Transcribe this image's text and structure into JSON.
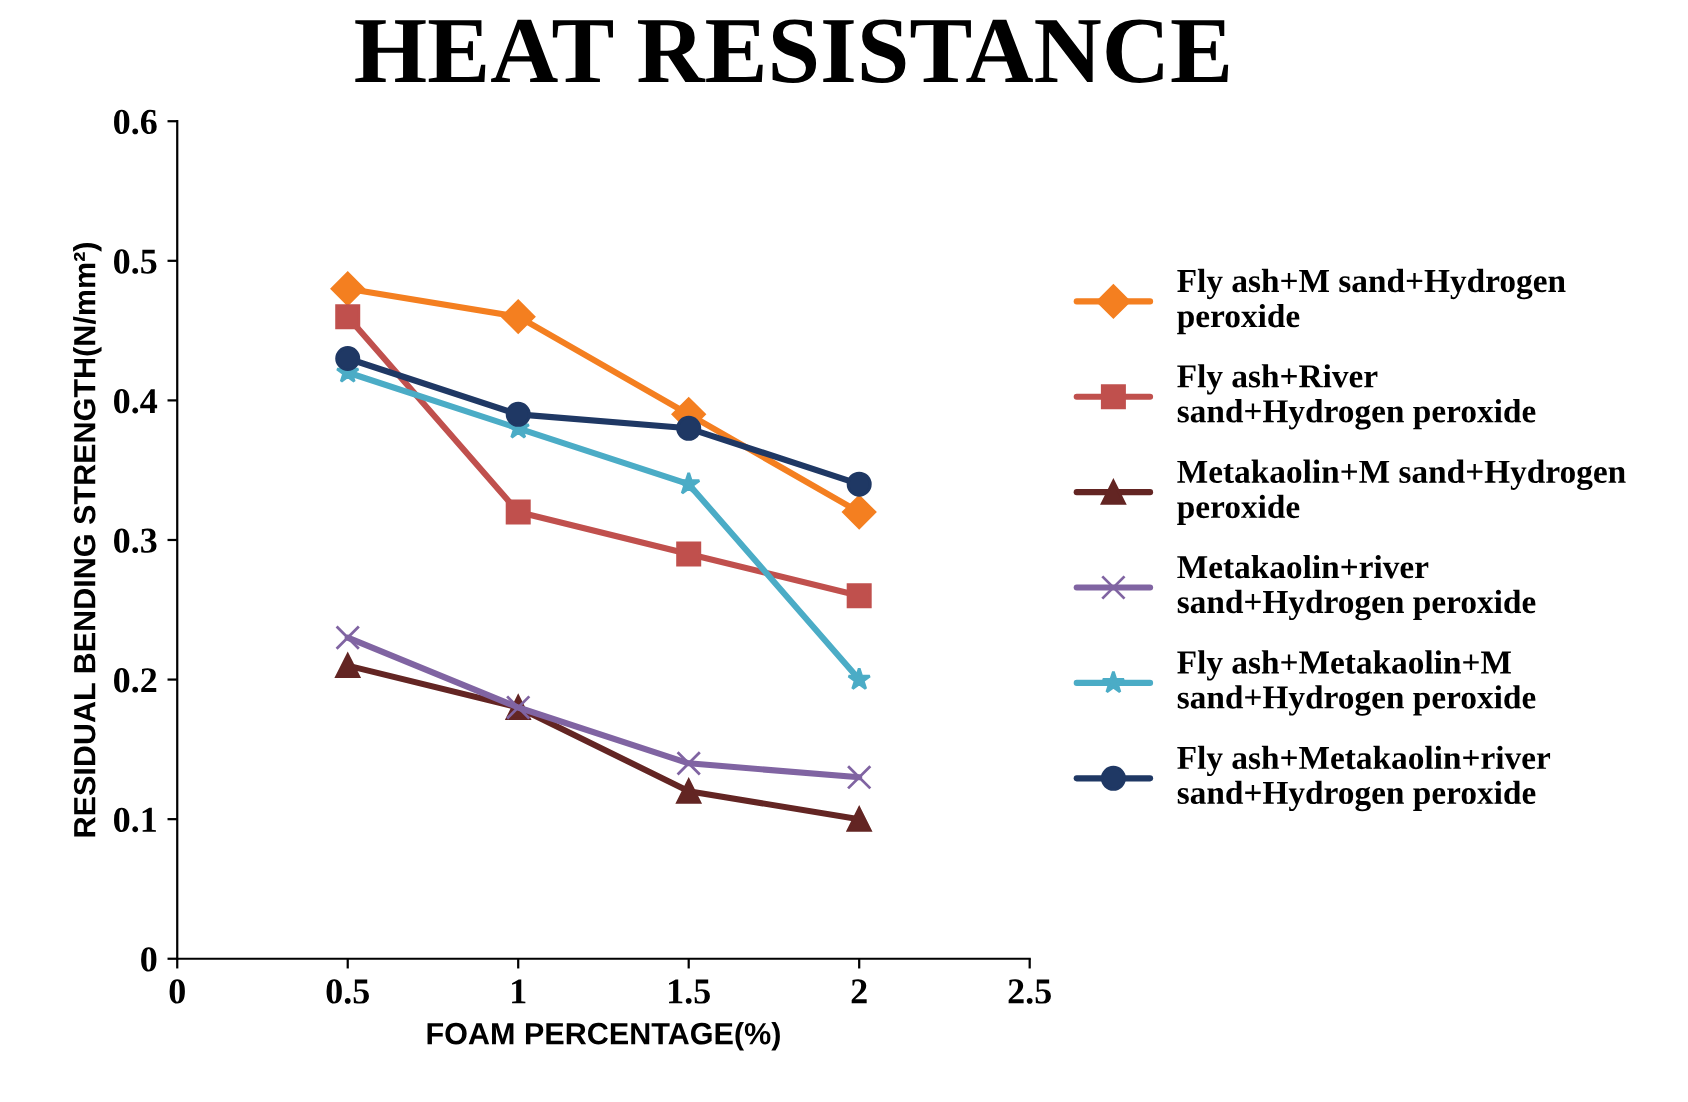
{
  "chart_data": {
    "type": "line",
    "title": "HEAT RESISTANCE",
    "xlabel": "FOAM PERCENTAGE(%)",
    "ylabel": "RESIDUAL BENDING STRENGTH(N/mm²)",
    "x": [
      0.5,
      1,
      1.5,
      2
    ],
    "series": [
      {
        "name": "Fly ash+M sand+Hydrogen peroxide",
        "color": "#f47f20",
        "marker": "diamond",
        "values": [
          0.48,
          0.46,
          0.39,
          0.32
        ]
      },
      {
        "name": "Fly ash+River sand+Hydrogen peroxide",
        "color": "#c0504d",
        "marker": "square",
        "values": [
          0.46,
          0.32,
          0.29,
          0.26
        ]
      },
      {
        "name": "Metakaolin+M sand+Hydrogen peroxide",
        "color": "#632523",
        "marker": "triangle",
        "values": [
          0.21,
          0.18,
          0.12,
          0.1
        ]
      },
      {
        "name": "Metakaolin+river sand+Hydrogen peroxide",
        "color": "#8064a2",
        "marker": "cross",
        "values": [
          0.23,
          0.18,
          0.14,
          0.13
        ]
      },
      {
        "name": "Fly ash+Metakaolin+M sand+Hydrogen peroxide",
        "color": "#4bacc6",
        "marker": "star",
        "values": [
          0.42,
          0.38,
          0.34,
          0.2
        ]
      },
      {
        "name": "Fly ash+Metakaolin+river sand+Hydrogen peroxide",
        "color": "#1f3864",
        "marker": "circle",
        "values": [
          0.43,
          0.39,
          0.38,
          0.34
        ]
      }
    ],
    "xlim": [
      0,
      2.5
    ],
    "xticks": [
      0,
      0.5,
      1,
      1.5,
      2,
      2.5
    ],
    "ylim": [
      0,
      0.6
    ],
    "yticks": [
      0,
      0.1,
      0.2,
      0.3,
      0.4,
      0.5,
      0.6
    ],
    "grid": false,
    "legend": "right",
    "line_style": "solid"
  }
}
